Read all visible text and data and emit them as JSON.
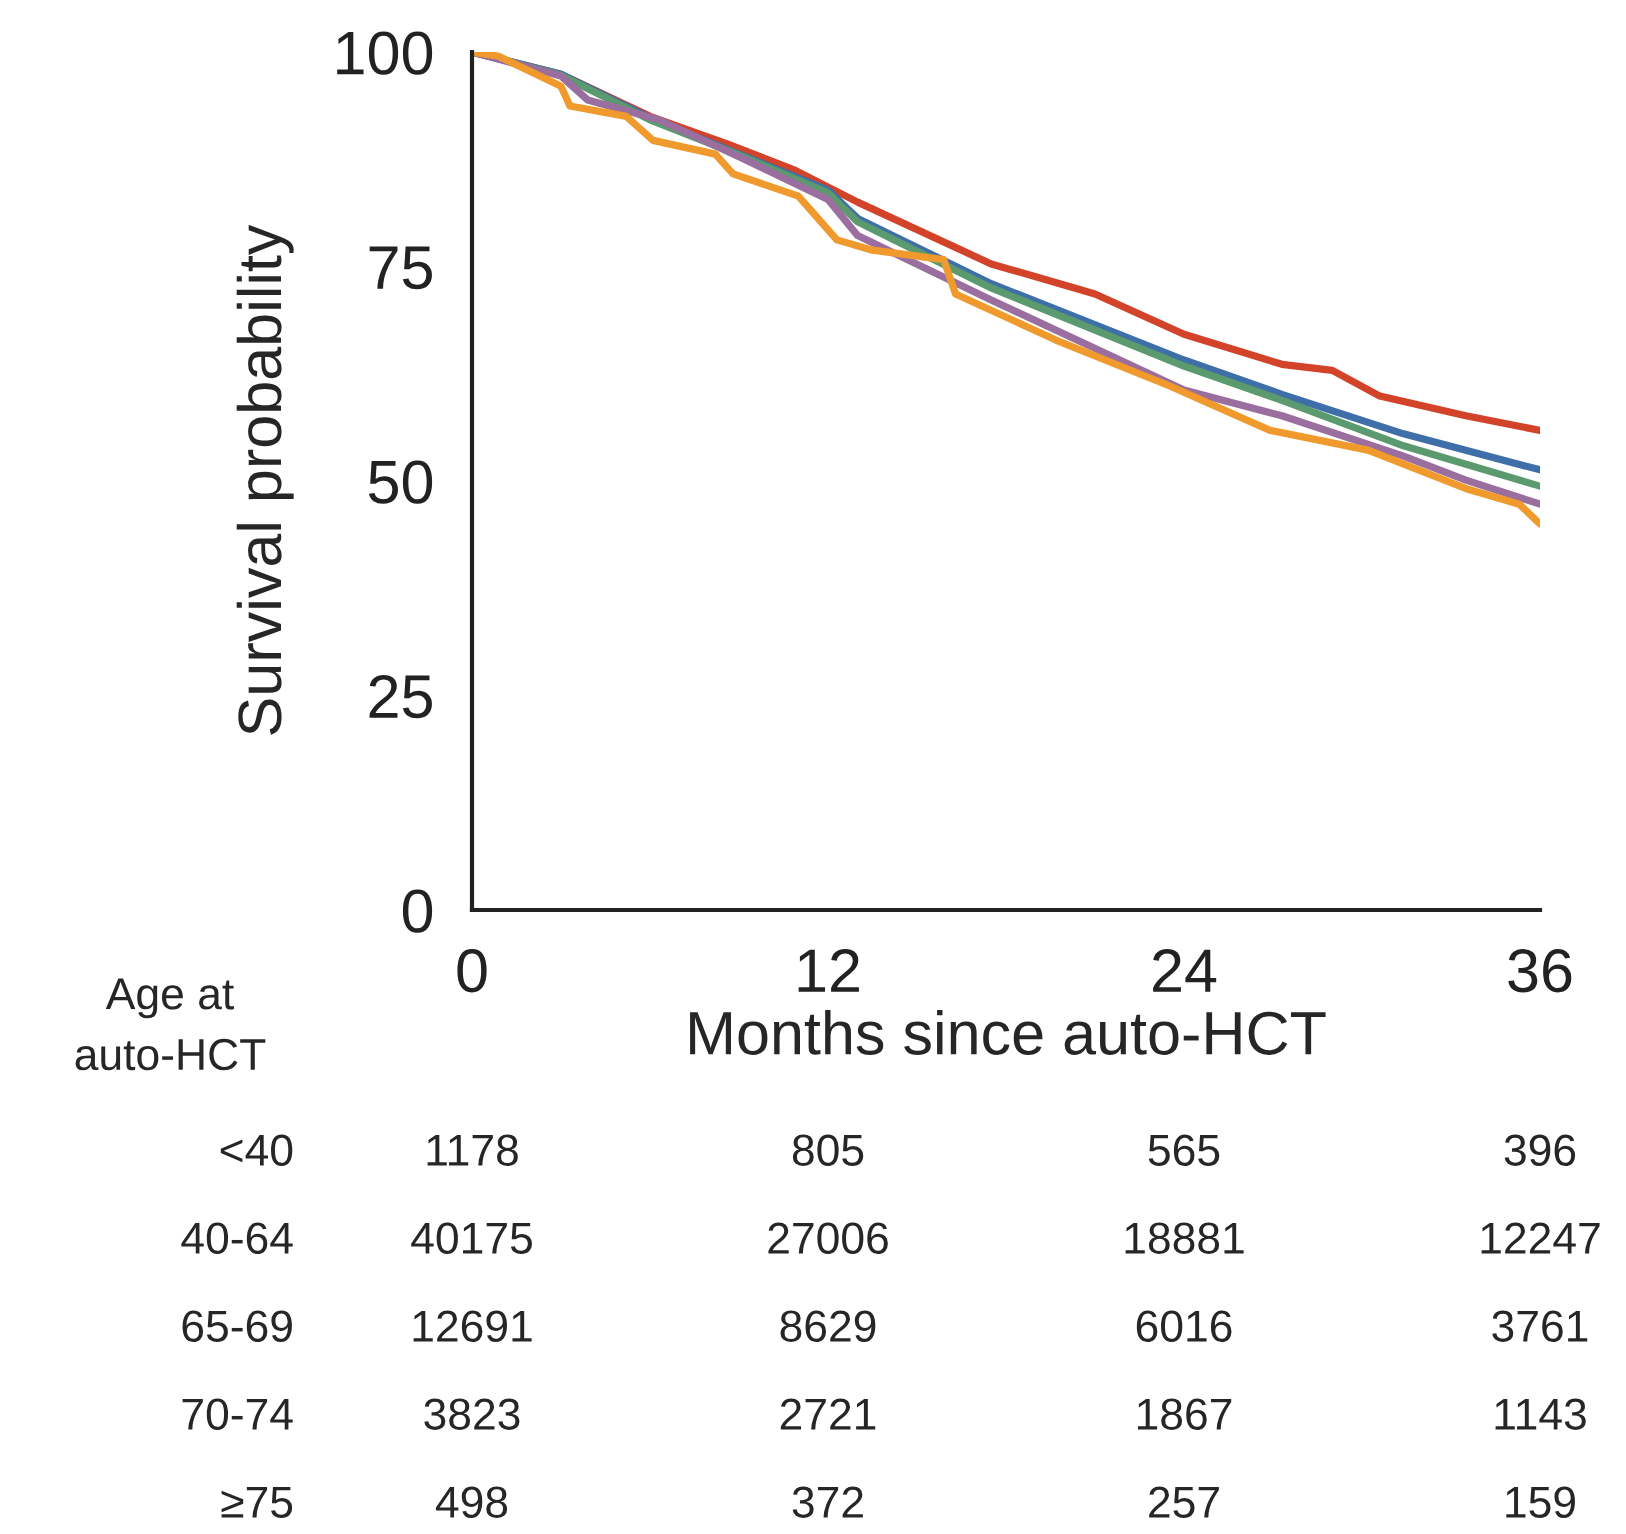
{
  "chart_data": {
    "type": "line",
    "xlabel": "Months since auto-HCT",
    "ylabel": "Survival probability",
    "xlim": [
      0,
      36
    ],
    "ylim": [
      0,
      100
    ],
    "xticks": [
      0,
      12,
      24,
      36
    ],
    "yticks": [
      0,
      25,
      50,
      75,
      100
    ],
    "grid": false,
    "marker": "none",
    "line_style": "solid",
    "series": [
      {
        "color": "#d2432a",
        "x": [
          0,
          3,
          6,
          8.6,
          10.9,
          13,
          17.5,
          21,
          24,
          27.3,
          29,
          30.6,
          33.5,
          36
        ],
        "values": [
          100,
          97.4,
          92.5,
          89.3,
          86.2,
          82.5,
          75.3,
          71.8,
          67.1,
          63.6,
          62.9,
          59.9,
          57.6,
          55.9
        ]
      },
      {
        "color": "#3f6fa8",
        "x": [
          0,
          3,
          6,
          9,
          12,
          13,
          17.5,
          24,
          27.3,
          31.4,
          36
        ],
        "values": [
          100,
          97.4,
          92.3,
          88.1,
          83.9,
          80.6,
          73,
          64.1,
          60.1,
          55.5,
          51.3
        ]
      },
      {
        "color": "#5a9a6e",
        "x": [
          0,
          3,
          6,
          9,
          12,
          13,
          17.5,
          24,
          27.3,
          31.4,
          36
        ],
        "values": [
          100,
          97.3,
          92.1,
          88,
          83.6,
          80.2,
          72.5,
          63.4,
          59.4,
          54.1,
          49.4
        ]
      },
      {
        "color": "#9a6e9e",
        "x": [
          0,
          3,
          3.9,
          6.3,
          9,
          12,
          13,
          17.5,
          24,
          27.3,
          31.4,
          33.5,
          36
        ],
        "values": [
          100,
          97.2,
          94.4,
          92.1,
          87.8,
          82.8,
          78.6,
          71.1,
          60.6,
          57.6,
          52.9,
          50.1,
          47.3
        ]
      },
      {
        "color": "#f09a2e",
        "x": [
          0,
          0.9,
          3,
          3.3,
          5.2,
          6.1,
          8.2,
          8.8,
          11,
          12.3,
          13.5,
          15.9,
          16.3,
          19.7,
          23.5,
          26.9,
          30.2,
          33.6,
          35.3,
          36
        ],
        "values": [
          100,
          99.5,
          96,
          93.7,
          92.5,
          89.7,
          88.1,
          85.8,
          83.2,
          78.1,
          76.9,
          75.8,
          71.8,
          66.4,
          61.1,
          55.9,
          53.6,
          49,
          47.3,
          45
        ]
      }
    ],
    "annotations": [
      "Age at\nauto-HCT",
      "<40",
      "1178",
      "805",
      "565",
      "396",
      "40-64",
      "40175",
      "27006",
      "18881",
      "12247",
      "65-69",
      "12691",
      "8629",
      "6016",
      "3761",
      "70-74",
      "3823",
      "2721",
      "1867",
      "1143",
      "≥75",
      "498",
      "372",
      "257",
      "159"
    ]
  }
}
